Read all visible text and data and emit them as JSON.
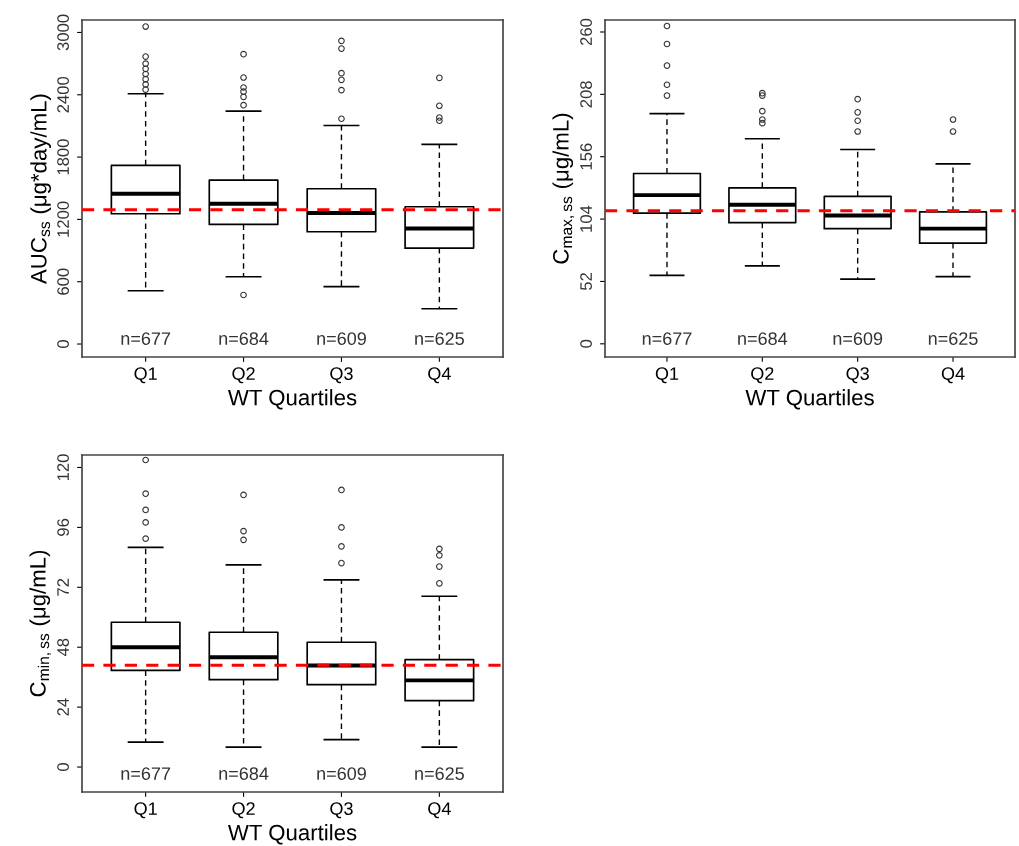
{
  "chart_data": [
    {
      "type": "box",
      "categories": [
        "Q1",
        "Q2",
        "Q3",
        "Q4"
      ],
      "xlabel": "WT Quartiles",
      "ylabel": "AUC$_{ss}$ (μg*day/mL)",
      "ylim": [
        -125,
        3120
      ],
      "yticks": [
        0,
        600,
        1200,
        1800,
        2400,
        3000
      ],
      "grid": false,
      "boxes": [
        {
          "low": 513,
          "q1": 1254,
          "median": 1447,
          "q3": 1720,
          "high": 2410,
          "outliers": [
            3057,
            2768,
            2700,
            2650,
            2600,
            2550,
            2500,
            2450
          ]
        },
        {
          "low": 648,
          "q1": 1152,
          "median": 1350,
          "q3": 1578,
          "high": 2242,
          "outliers": [
            2791,
            2566,
            2470,
            2430,
            2380,
            2300,
            472
          ]
        },
        {
          "low": 552,
          "q1": 1081,
          "median": 1261,
          "q3": 1495,
          "high": 2104,
          "outliers": [
            2919,
            2845,
            2608,
            2544,
            2445,
            2169
          ]
        },
        {
          "low": 340,
          "q1": 924,
          "median": 1113,
          "q3": 1322,
          "high": 1922,
          "outliers": [
            2563,
            2294,
            2181,
            2150
          ]
        }
      ],
      "ref_lines": [
        {
          "axis": "y",
          "value": 1293,
          "color": "#ff0000",
          "line_style": "dashed"
        }
      ],
      "annotations": [
        "n=677",
        "n=684",
        "n=609",
        "n=625"
      ]
    },
    {
      "type": "box",
      "categories": [
        "Q1",
        "Q2",
        "Q3",
        "Q4"
      ],
      "xlabel": "WT Quartiles",
      "ylabel": "C$_{max,ss}$ (μg/mL)",
      "ylim": [
        -11,
        270
      ],
      "yticks": [
        0,
        52,
        104,
        156,
        208,
        260
      ],
      "grid": false,
      "boxes": [
        {
          "low": 57,
          "q1": 109,
          "median": 124,
          "q3": 142,
          "high": 192,
          "outliers": [
            265,
            250,
            232,
            216,
            207
          ]
        },
        {
          "low": 65,
          "q1": 101,
          "median": 116,
          "q3": 130,
          "high": 171,
          "outliers": [
            209,
            207,
            194,
            187,
            184
          ]
        },
        {
          "low": 54,
          "q1": 96,
          "median": 107,
          "q3": 123,
          "high": 162,
          "outliers": [
            204,
            193,
            186,
            177
          ]
        },
        {
          "low": 56,
          "q1": 84,
          "median": 96,
          "q3": 110,
          "high": 150,
          "outliers": [
            187,
            177
          ]
        }
      ],
      "ref_lines": [
        {
          "axis": "y",
          "value": 111,
          "color": "#ff0000",
          "line_style": "dashed"
        }
      ],
      "annotations": [
        "n=677",
        "n=684",
        "n=609",
        "n=625"
      ]
    },
    {
      "type": "box",
      "categories": [
        "Q1",
        "Q2",
        "Q3",
        "Q4"
      ],
      "xlabel": "WT Quartiles",
      "ylabel": "C$_{min,ss}$ (μg/mL)",
      "ylim": [
        -10,
        125
      ],
      "yticks": [
        0,
        24,
        48,
        72,
        96,
        120
      ],
      "grid": false,
      "boxes": [
        {
          "low": 10,
          "q1": 38.7,
          "median": 48,
          "q3": 58,
          "high": 88,
          "outliers": [
            123,
            109.5,
            103,
            98,
            91.5
          ]
        },
        {
          "low": 8,
          "q1": 35,
          "median": 44,
          "q3": 54,
          "high": 81,
          "outliers": [
            109,
            94.5,
            91
          ]
        },
        {
          "low": 11,
          "q1": 33,
          "median": 40.7,
          "q3": 50,
          "high": 75,
          "outliers": [
            111,
            96,
            88.4,
            81.7
          ]
        },
        {
          "low": 8,
          "q1": 26.6,
          "median": 34.7,
          "q3": 43,
          "high": 68.4,
          "outliers": [
            87.4,
            84.8,
            80.3,
            73.6
          ]
        }
      ],
      "ref_lines": [
        {
          "axis": "y",
          "value": 40.8,
          "color": "#ff0000",
          "line_style": "dashed"
        }
      ],
      "annotations": [
        "n=677",
        "n=684",
        "n=609",
        "n=625"
      ]
    }
  ]
}
